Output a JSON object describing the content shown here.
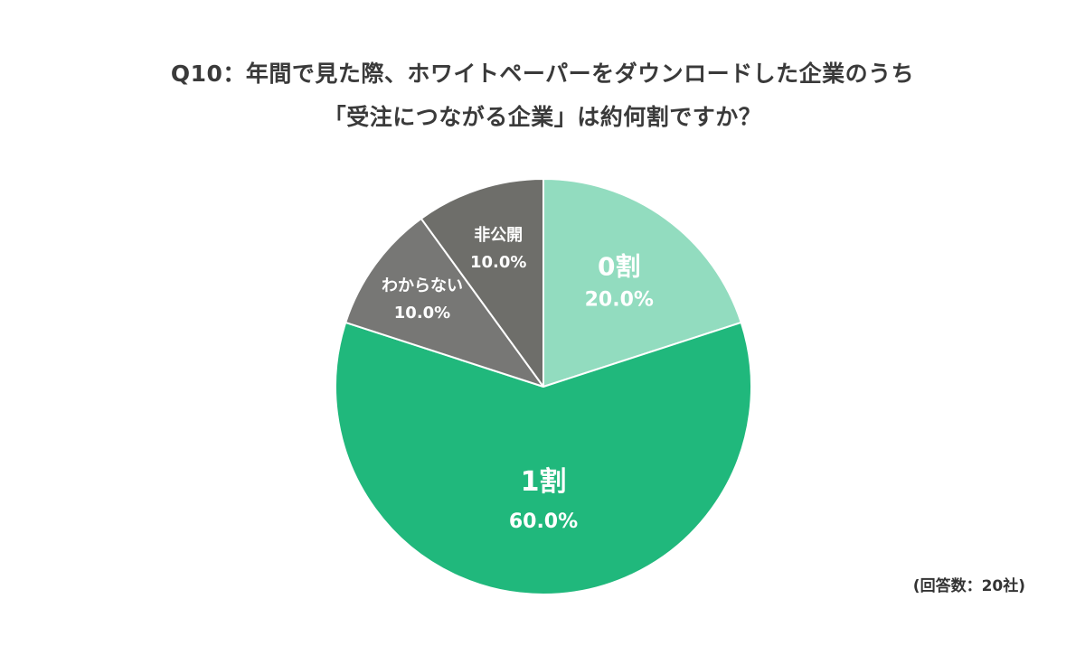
{
  "chart_data": {
    "type": "pie",
    "title_lines": [
      "Q10：年間で見た際、ホワイトペーパーをダウンロードした企業のうち",
      "「受注につながる企業」は約何割ですか？"
    ],
    "slices": [
      {
        "label": "0割",
        "value": 20.0,
        "value_label": "20.0%",
        "color": "#92dcbf",
        "text_color": "#ffffff"
      },
      {
        "label": "1割",
        "value": 60.0,
        "value_label": "60.0%",
        "color": "#20b87c",
        "text_color": "#ffffff"
      },
      {
        "label": "わからない",
        "value": 10.0,
        "value_label": "10.0%",
        "color": "#777775",
        "text_color": "#ffffff"
      },
      {
        "label": "非公開",
        "value": 10.0,
        "value_label": "10.0%",
        "color": "#6e6e6a",
        "text_color": "#ffffff"
      }
    ],
    "start": "12 o'clock",
    "direction": "clockwise",
    "slice_border_color": "#ffffff",
    "note": "(回答数：20社)"
  }
}
